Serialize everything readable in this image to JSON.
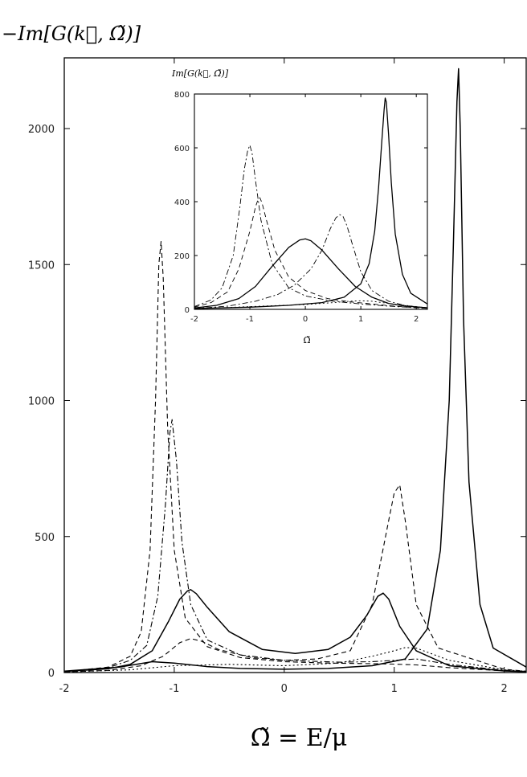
{
  "chart_data": [
    {
      "type": "line",
      "ylabel": "−Im[G(k⃗, Ω̃)]",
      "xlabel": "Ω̃ = E/μ",
      "xlim": [
        -2,
        2.2
      ],
      "ylim": [
        0,
        2260
      ],
      "xticks": [
        -2,
        -1,
        0,
        1,
        2
      ],
      "yticks": [
        0,
        500,
        1000,
        1500,
        2000
      ],
      "xtick_labels": [
        "-2",
        "-1",
        "0",
        "1",
        "2"
      ],
      "ytick_labels": [
        "0",
        "500",
        "1000",
        "1500",
        "2000"
      ],
      "grid": false,
      "series": [
        {
          "style": "dashed",
          "x": [
            -2.0,
            -1.6,
            -1.4,
            -1.3,
            -1.22,
            -1.17,
            -1.14,
            -1.12,
            -1.1,
            -1.06,
            -1.0,
            -0.9,
            -0.7,
            -0.4,
            0.0,
            0.4,
            0.7,
            0.9,
            1.0,
            1.2,
            1.5,
            2.0,
            2.2
          ],
          "y": [
            3,
            20,
            60,
            150,
            450,
            1000,
            1500,
            1585,
            1450,
            900,
            450,
            200,
            95,
            55,
            40,
            35,
            33,
            32,
            31,
            28,
            18,
            6,
            3
          ]
        },
        {
          "style": "dash-dot",
          "x": [
            -2.0,
            -1.6,
            -1.4,
            -1.25,
            -1.15,
            -1.08,
            -1.04,
            -1.02,
            -0.98,
            -0.93,
            -0.85,
            -0.7,
            -0.4,
            0.0,
            0.5,
            0.8,
            1.0,
            1.2,
            1.5,
            2.0,
            2.2
          ],
          "y": [
            3,
            18,
            45,
            100,
            280,
            620,
            880,
            930,
            780,
            480,
            250,
            120,
            65,
            45,
            38,
            40,
            45,
            50,
            30,
            8,
            4
          ]
        },
        {
          "style": "solid",
          "x": [
            -2.0,
            -1.6,
            -1.4,
            -1.2,
            -1.05,
            -0.95,
            -0.88,
            -0.85,
            -0.8,
            -0.7,
            -0.5,
            -0.2,
            0.1,
            0.4,
            0.6,
            0.75,
            0.85,
            0.9,
            0.95,
            1.05,
            1.2,
            1.5,
            2.0,
            2.2
          ],
          "y": [
            4,
            14,
            30,
            80,
            190,
            270,
            300,
            305,
            290,
            240,
            150,
            85,
            70,
            85,
            130,
            210,
            280,
            292,
            270,
            170,
            80,
            25,
            6,
            3
          ]
        },
        {
          "style": "dashed",
          "x": [
            -2.0,
            -1.6,
            -1.3,
            -1.1,
            -0.95,
            -0.85,
            -0.75,
            -0.6,
            -0.3,
            0.0,
            0.3,
            0.6,
            0.8,
            0.95,
            1.0,
            1.05,
            1.1,
            1.2,
            1.4,
            2.0,
            2.2
          ],
          "y": [
            2,
            8,
            25,
            60,
            110,
            125,
            115,
            85,
            55,
            45,
            50,
            80,
            250,
            560,
            660,
            690,
            560,
            250,
            90,
            12,
            5
          ]
        },
        {
          "style": "dotted",
          "x": [
            -2.0,
            -1.4,
            -1.0,
            -0.5,
            0.0,
            0.5,
            0.8,
            1.0,
            1.1,
            1.2,
            1.3,
            1.5,
            2.0,
            2.2
          ],
          "y": [
            2,
            10,
            25,
            30,
            25,
            35,
            60,
            80,
            92,
            90,
            75,
            45,
            10,
            5
          ]
        },
        {
          "style": "solid",
          "x": [
            -2.0,
            -1.5,
            -1.2,
            -1.0,
            -0.7,
            -0.4,
            0.0,
            0.4,
            0.8,
            1.1,
            1.3,
            1.42,
            1.5,
            1.54,
            1.57,
            1.585,
            1.6,
            1.63,
            1.68,
            1.78,
            1.9,
            2.2
          ],
          "y": [
            5,
            20,
            40,
            35,
            22,
            15,
            12,
            15,
            25,
            50,
            160,
            450,
            1000,
            1600,
            2100,
            2220,
            2000,
            1300,
            700,
            250,
            90,
            20
          ]
        }
      ]
    },
    {
      "type": "line",
      "ylabel": "Im[G(k⃗, Ω̃)]",
      "xlabel": "Ω̃",
      "xlim": [
        -2,
        2.2
      ],
      "ylim": [
        0,
        800
      ],
      "xticks": [
        -2,
        -1,
        0,
        1,
        2
      ],
      "yticks": [
        0,
        200,
        400,
        600,
        800
      ],
      "xtick_labels": [
        "-2",
        "-1",
        "0",
        "1",
        "2"
      ],
      "ytick_labels": [
        "0",
        "200",
        "400",
        "600",
        "800"
      ],
      "grid": false,
      "series": [
        {
          "style": "dash-dot",
          "x": [
            -2.0,
            -1.7,
            -1.5,
            -1.3,
            -1.18,
            -1.1,
            -1.04,
            -1.0,
            -0.96,
            -0.9,
            -0.8,
            -0.6,
            -0.3,
            0.0,
            0.5,
            1.0,
            1.5,
            2.0,
            2.2
          ],
          "y": [
            10,
            35,
            80,
            200,
            380,
            520,
            590,
            610,
            580,
            480,
            330,
            170,
            80,
            50,
            30,
            20,
            12,
            6,
            4
          ]
        },
        {
          "style": "dashed",
          "x": [
            -2.0,
            -1.7,
            -1.4,
            -1.2,
            -1.0,
            -0.9,
            -0.85,
            -0.82,
            -0.78,
            -0.7,
            -0.55,
            -0.3,
            0.0,
            0.4,
            0.8,
            1.2,
            1.6,
            2.0,
            2.2
          ],
          "y": [
            8,
            25,
            65,
            150,
            290,
            380,
            410,
            415,
            395,
            330,
            220,
            120,
            70,
            40,
            28,
            20,
            12,
            6,
            4
          ]
        },
        {
          "style": "solid",
          "x": [
            -2.0,
            -1.6,
            -1.2,
            -0.9,
            -0.6,
            -0.3,
            -0.1,
            0.0,
            0.1,
            0.3,
            0.6,
            0.9,
            1.2,
            1.5,
            1.8,
            2.2
          ],
          "y": [
            5,
            15,
            40,
            85,
            160,
            230,
            258,
            262,
            255,
            220,
            150,
            85,
            45,
            22,
            12,
            6
          ]
        },
        {
          "style": "dash-dot",
          "x": [
            -2.0,
            -1.4,
            -0.9,
            -0.5,
            -0.2,
            0.1,
            0.3,
            0.45,
            0.55,
            0.62,
            0.68,
            0.75,
            0.85,
            1.0,
            1.2,
            1.5,
            1.8,
            2.2
          ],
          "y": [
            3,
            12,
            30,
            55,
            90,
            150,
            220,
            300,
            340,
            352,
            345,
            310,
            240,
            140,
            70,
            30,
            14,
            6
          ]
        },
        {
          "style": "dotted",
          "x": [
            -2.0,
            -1.0,
            0.0,
            0.5,
            0.8,
            1.0,
            1.2,
            1.5,
            2.0,
            2.2
          ],
          "y": [
            2,
            10,
            18,
            25,
            30,
            32,
            30,
            22,
            10,
            5
          ]
        },
        {
          "style": "solid",
          "x": [
            -2.0,
            -1.0,
            -0.3,
            0.3,
            0.7,
            1.0,
            1.15,
            1.25,
            1.32,
            1.38,
            1.42,
            1.44,
            1.46,
            1.5,
            1.55,
            1.62,
            1.75,
            1.9,
            2.2
          ],
          "y": [
            3,
            8,
            15,
            25,
            45,
            95,
            170,
            290,
            450,
            630,
            740,
            785,
            770,
            650,
            470,
            280,
            130,
            60,
            20
          ]
        }
      ]
    }
  ]
}
